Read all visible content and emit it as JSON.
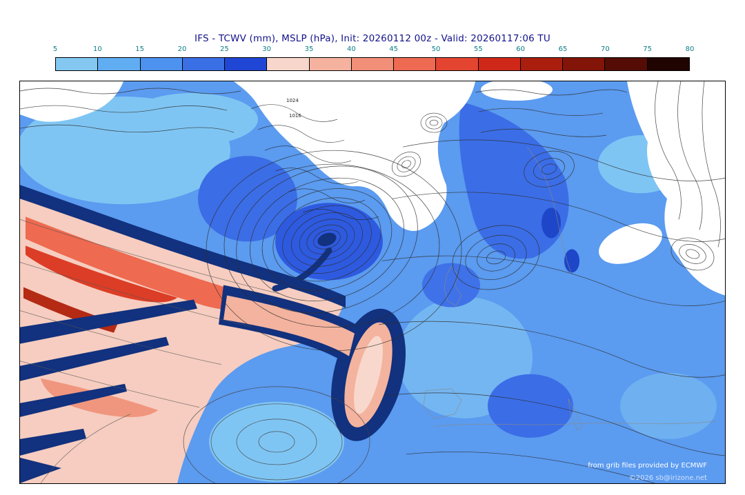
{
  "title": "IFS - TCWV (mm), MSLP (hPa), Init: 20260112 00z - Valid: 20260117:06 TU",
  "colors": {
    "title": "#12128c",
    "tick_labels": "#0a7d85"
  },
  "colorbar": {
    "ticks": [
      "5",
      "10",
      "15",
      "20",
      "25",
      "30",
      "35",
      "40",
      "45",
      "50",
      "55",
      "60",
      "65",
      "70",
      "75",
      "80"
    ],
    "segments": [
      "#84c8f2",
      "#60adf2",
      "#4d92ee",
      "#3a6fe6",
      "#1f46d4",
      "#f7d6cb",
      "#f5b29f",
      "#f28f78",
      "#ee6a52",
      "#e44530",
      "#d02818",
      "#aa1e0e",
      "#821408",
      "#540c04",
      "#200402"
    ]
  },
  "map": {
    "contour_labels": [
      "1024",
      "1016"
    ],
    "attribution_line1": "from grib files provided by ECMWF",
    "attribution_line2": "©2026 sb@irizone.net"
  }
}
